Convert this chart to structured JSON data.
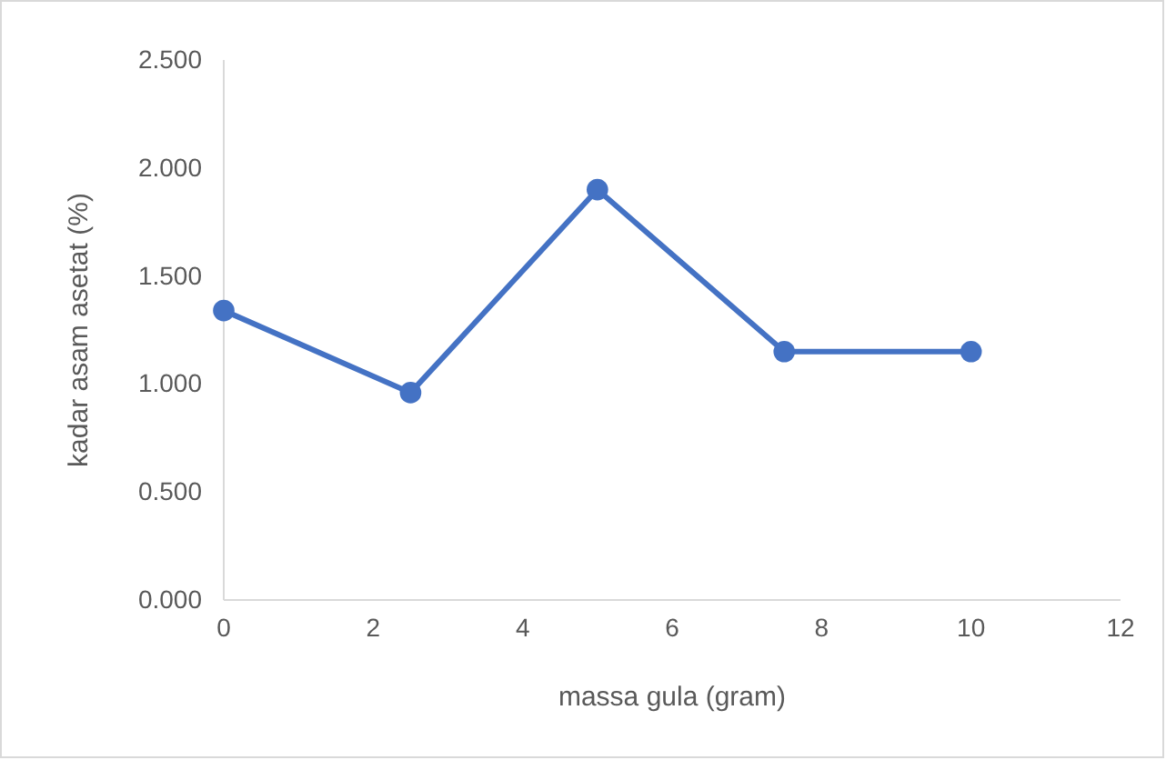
{
  "chart_data": {
    "type": "line",
    "xlabel": "massa gula (gram)",
    "ylabel": "kadar asam asetat (%)",
    "x": [
      0,
      2.5,
      5,
      7.5,
      10
    ],
    "series": [
      {
        "color": "#4472c4",
        "values": [
          1.34,
          0.96,
          1.9,
          1.15,
          1.15
        ]
      }
    ],
    "xlim": [
      0,
      12
    ],
    "xticks": [
      0,
      2,
      4,
      6,
      8,
      10,
      12
    ],
    "ylim": [
      0,
      2.5
    ],
    "yticks": [
      {
        "value": 0,
        "label": "0.000"
      },
      {
        "value": 0.5,
        "label": "0.500"
      },
      {
        "value": 1,
        "label": "1.000"
      },
      {
        "value": 1.5,
        "label": "1.500"
      },
      {
        "value": 2,
        "label": "2.000"
      },
      {
        "value": 2.5,
        "label": "2.500"
      }
    ],
    "marker": "circle",
    "line_style": "solid",
    "grid": false
  }
}
